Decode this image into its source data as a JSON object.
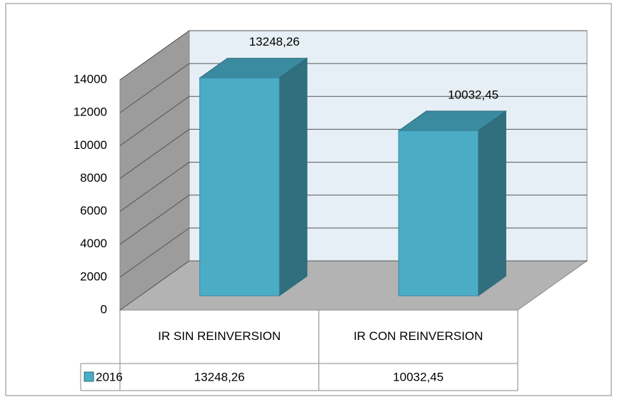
{
  "chart_data": {
    "type": "bar3d",
    "categories": [
      "IR SIN REINVERSION",
      "IR CON REINVERSION"
    ],
    "series": [
      {
        "name": "2016",
        "color": "#4bacc6",
        "values": [
          13248.26,
          10032.45
        ],
        "value_labels": [
          "13248,26",
          "10032,45"
        ]
      }
    ],
    "ylim": [
      0,
      14000
    ],
    "yticks": [
      0,
      2000,
      4000,
      6000,
      8000,
      10000,
      12000,
      14000
    ],
    "grid": true,
    "data_table": true
  }
}
